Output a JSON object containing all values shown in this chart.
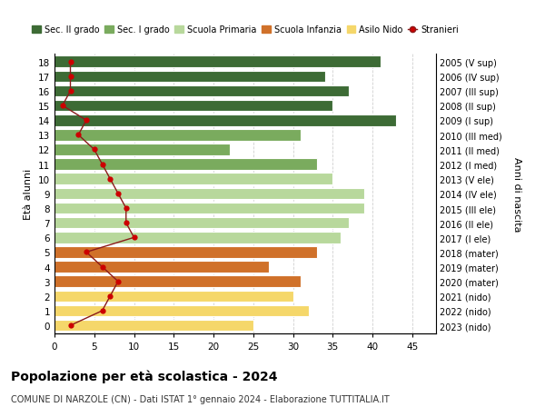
{
  "ages": [
    18,
    17,
    16,
    15,
    14,
    13,
    12,
    11,
    10,
    9,
    8,
    7,
    6,
    5,
    4,
    3,
    2,
    1,
    0
  ],
  "years": [
    "2005 (V sup)",
    "2006 (IV sup)",
    "2007 (III sup)",
    "2008 (II sup)",
    "2009 (I sup)",
    "2010 (III med)",
    "2011 (II med)",
    "2012 (I med)",
    "2013 (V ele)",
    "2014 (IV ele)",
    "2015 (III ele)",
    "2016 (II ele)",
    "2017 (I ele)",
    "2018 (mater)",
    "2019 (mater)",
    "2020 (mater)",
    "2021 (nido)",
    "2022 (nido)",
    "2023 (nido)"
  ],
  "bar_values": [
    41,
    34,
    37,
    35,
    43,
    31,
    22,
    33,
    35,
    39,
    39,
    37,
    36,
    33,
    27,
    31,
    30,
    32,
    25
  ],
  "bar_colors": [
    "#3d6b35",
    "#3d6b35",
    "#3d6b35",
    "#3d6b35",
    "#3d6b35",
    "#7aab5e",
    "#7aab5e",
    "#7aab5e",
    "#b8d89c",
    "#b8d89c",
    "#b8d89c",
    "#b8d89c",
    "#b8d89c",
    "#d0712a",
    "#d0712a",
    "#d0712a",
    "#f5d76a",
    "#f5d76a",
    "#f5d76a"
  ],
  "stranieri": [
    2,
    2,
    2,
    1,
    4,
    3,
    5,
    6,
    7,
    8,
    9,
    9,
    10,
    4,
    6,
    8,
    7,
    6,
    2
  ],
  "legend_labels": [
    "Sec. II grado",
    "Sec. I grado",
    "Scuola Primaria",
    "Scuola Infanzia",
    "Asilo Nido",
    "Stranieri"
  ],
  "legend_colors": [
    "#3d6b35",
    "#7aab5e",
    "#b8d89c",
    "#d0712a",
    "#f5d76a",
    "#cc0000"
  ],
  "title": "Popolazione per età scolastica - 2024",
  "subtitle": "COMUNE DI NARZOLE (CN) - Dati ISTAT 1° gennaio 2024 - Elaborazione TUTTITALIA.IT",
  "ylabel_left": "Età alunni",
  "ylabel_right": "Anni di nascita",
  "xlim": [
    0,
    48
  ],
  "bar_height": 0.78,
  "grid_color": "#d0d0d0",
  "stranieri_line_color": "#8b1a1a",
  "stranieri_marker_color": "#cc0000",
  "xticks": [
    0,
    5,
    10,
    15,
    20,
    25,
    30,
    35,
    40,
    45
  ]
}
